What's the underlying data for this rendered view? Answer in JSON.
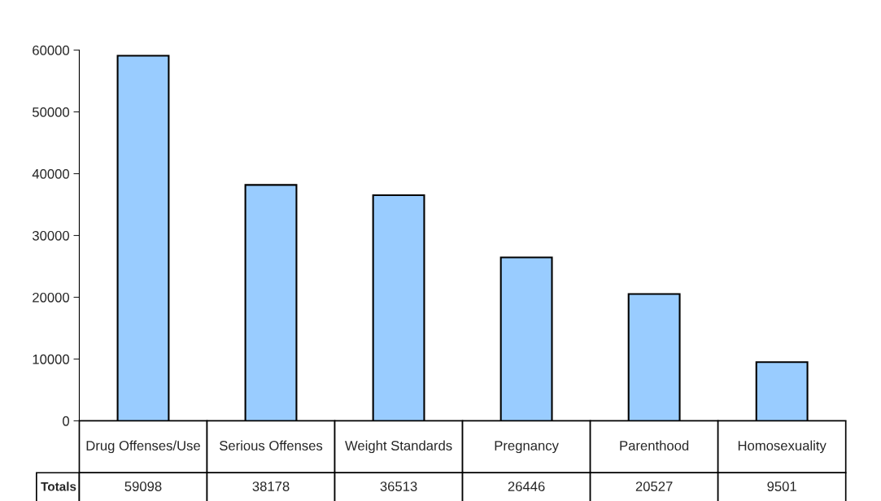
{
  "chart_data": {
    "type": "bar",
    "categories": [
      "Drug Offenses/Use",
      "Serious Offenses",
      "Weight Standards",
      "Pregnancy",
      "Parenthood",
      "Homosexuality"
    ],
    "values": [
      59098,
      38178,
      36513,
      26446,
      20527,
      9501
    ],
    "color": "#99ccff",
    "ylim": [
      0,
      60000
    ],
    "yticks": [
      0,
      10000,
      20000,
      30000,
      40000,
      50000,
      60000
    ],
    "grid": false,
    "data_labels": true,
    "annotations": [
      "Totals"
    ]
  }
}
